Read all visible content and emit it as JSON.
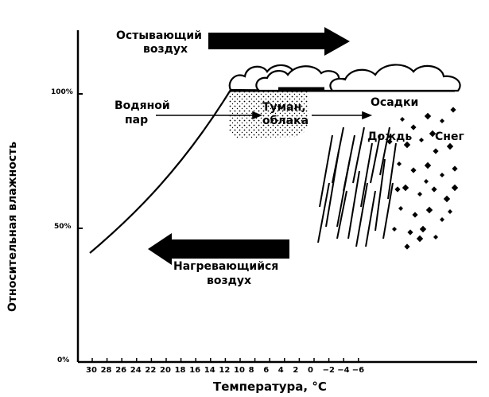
{
  "axes": {
    "y_label": "Относительная влажность",
    "x_label": "Температура, °С",
    "y_ticks": [
      "100%",
      "50%",
      "0%"
    ],
    "x_ticks": [
      "30",
      "28",
      "26",
      "24",
      "22",
      "20",
      "18",
      "16",
      "14",
      "12",
      "10",
      "8",
      "6",
      "4",
      "2",
      "0",
      "−2",
      "−4",
      "−6"
    ]
  },
  "labels": {
    "cooling_air": [
      "Остывающий",
      "воздух"
    ],
    "warming_air": [
      "Нагревающийся",
      "воздух"
    ],
    "water_vapor": [
      "Водяной",
      "пар"
    ],
    "fog_clouds": [
      "Туман,",
      "облака"
    ],
    "precipitation": "Осадки",
    "rain": "Дождь",
    "snow": "Снег"
  },
  "colors": {
    "ink": "#000000",
    "paper": "#ffffff"
  }
}
